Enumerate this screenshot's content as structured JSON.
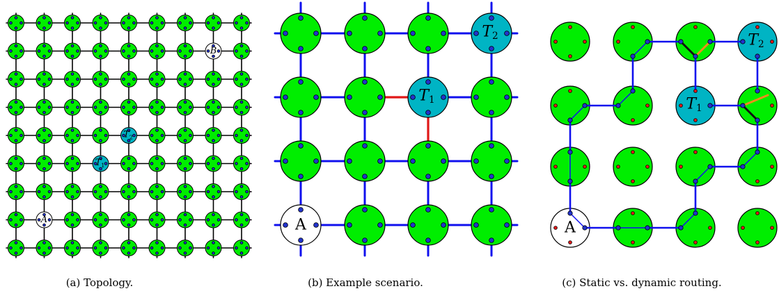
{
  "colors": {
    "qubit_node": "#00ee00",
    "target_node": "#00b4c4",
    "endpoint_node": "#ffffff",
    "link": "#1010ee",
    "grid_link": "#000000",
    "conflict_link": "#e01818",
    "dynamic_link": "#f28c1c",
    "static_link": "#111111",
    "port_used": "#2233cc",
    "port_free": "#e01818"
  },
  "panels": [
    {
      "id": "a",
      "caption": "(a)  Topology.",
      "labels": {
        "A": "A",
        "B": "B",
        "T1": "T",
        "T1_sub": "1",
        "T2": "T",
        "T2_sub": "2"
      }
    },
    {
      "id": "b",
      "caption": "(b)  Example scenario.",
      "labels": {
        "A": "A",
        "T1": "T",
        "T1_sub": "1",
        "T2": "T",
        "T2_sub": "2"
      }
    },
    {
      "id": "c",
      "caption": "(c)  Static vs. dynamic routing.",
      "labels": {
        "A": "A",
        "T1": "T",
        "T1_sub": "1",
        "T2": "T",
        "T2_sub": "2"
      }
    }
  ]
}
